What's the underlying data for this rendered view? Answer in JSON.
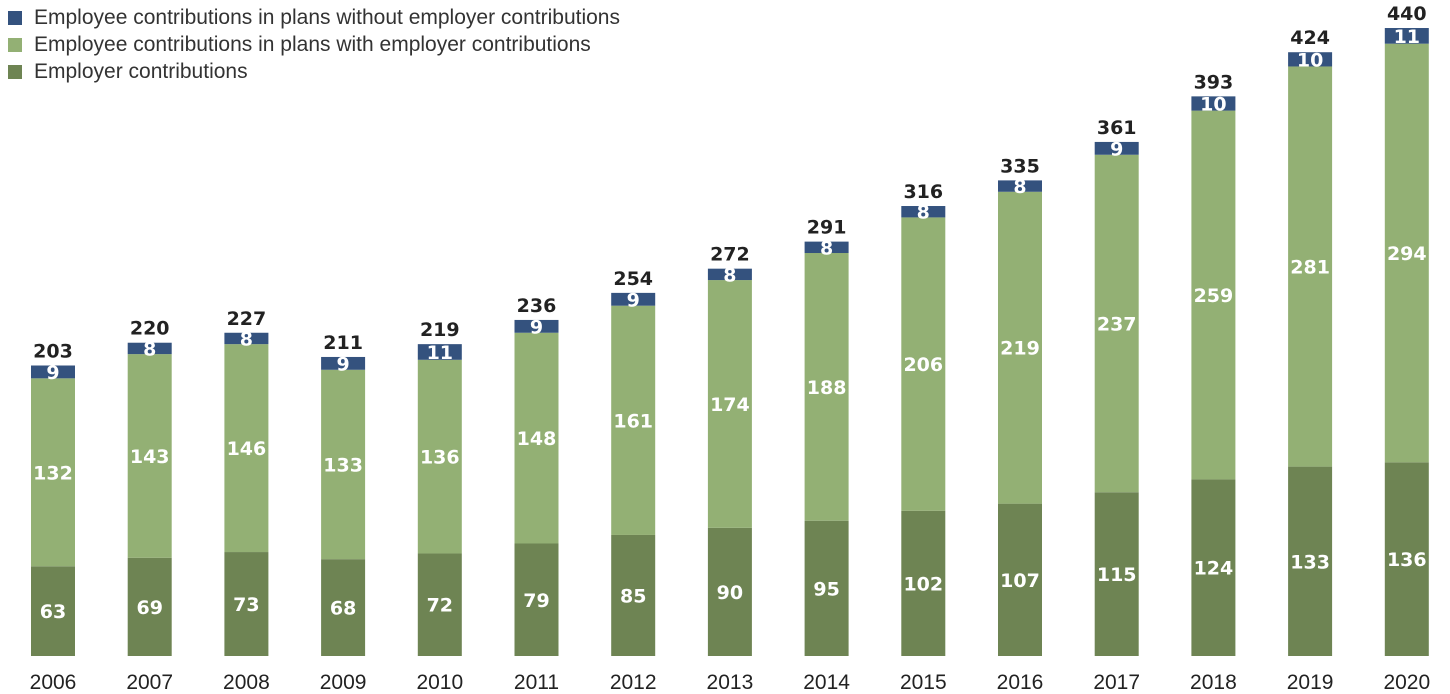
{
  "chart_data": {
    "type": "bar",
    "stacked": true,
    "categories": [
      "2006",
      "2007",
      "2008",
      "2009",
      "2010",
      "2011",
      "2012",
      "2013",
      "2014",
      "2015",
      "2016",
      "2017",
      "2018",
      "2019",
      "2020"
    ],
    "series": [
      {
        "name": "Employer contributions",
        "color": "#6e8453",
        "values": [
          63,
          69,
          73,
          68,
          72,
          79,
          85,
          90,
          95,
          102,
          107,
          115,
          124,
          133,
          136
        ]
      },
      {
        "name": "Employee contributions in plans with employer contributions",
        "color": "#93b074",
        "values": [
          132,
          143,
          146,
          133,
          136,
          148,
          161,
          174,
          188,
          206,
          219,
          237,
          259,
          281,
          294
        ]
      },
      {
        "name": "Employee contributions in plans without employer contributions",
        "color": "#34527e",
        "values": [
          9,
          8,
          8,
          9,
          11,
          9,
          9,
          8,
          8,
          8,
          8,
          9,
          10,
          10,
          11
        ]
      }
    ],
    "totals": [
      203,
      220,
      227,
      211,
      219,
      236,
      254,
      272,
      291,
      316,
      335,
      361,
      393,
      424,
      440
    ],
    "legend_order": [
      "Employee contributions in plans without employer contributions",
      "Employee contributions in plans with employer contributions",
      "Employer contributions"
    ],
    "legend_position": "top-left",
    "grid": false,
    "title": "",
    "xlabel": "",
    "ylabel": ""
  }
}
